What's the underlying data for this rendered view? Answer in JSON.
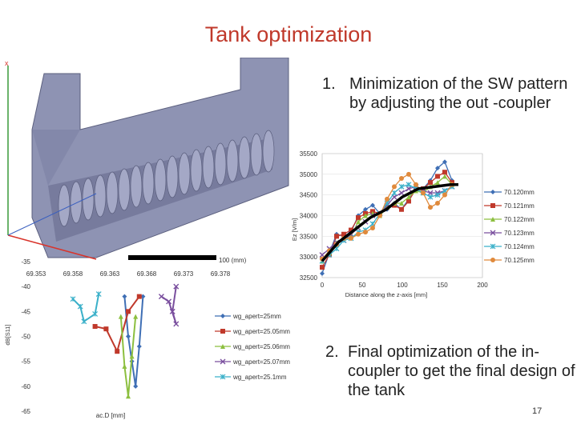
{
  "slide": {
    "title": "Tank optimization",
    "item1_number": "1.",
    "item1_text": "Minimization of the SW pattern by adjusting the out -coupler",
    "item2_number": "2.",
    "item2_text": "Final optimization of the in-coupler to get the final design of the tank",
    "page_number": "17"
  },
  "cad_view": {
    "x_axis_label": "x",
    "scale_label": "100 (mm)",
    "colors": {
      "body": "#8e93b3",
      "body_dark": "#6d7194",
      "axis_x": "#d9342b",
      "axis_y": "#3a9a3a"
    }
  },
  "chart_data": [
    {
      "type": "line",
      "xlabel": "Distance along the z-axis [mm]",
      "ylabel": "Ez [V/m]",
      "xlim": [
        0,
        200
      ],
      "ylim": [
        32500,
        35500
      ],
      "xticks": [
        0,
        50,
        100,
        150,
        200
      ],
      "yticks": [
        32500,
        33000,
        33500,
        34000,
        34500,
        35000,
        35500
      ],
      "legend_position": "right",
      "series": [
        {
          "name": "70.120mm",
          "color": "#3f6fb5",
          "marker": "diamond",
          "x": [
            0,
            9,
            18,
            27,
            36,
            45,
            54,
            63,
            72,
            81,
            90,
            99,
            108,
            117,
            126,
            135,
            144,
            153,
            162
          ],
          "y": [
            32600,
            33100,
            33550,
            33500,
            33600,
            34000,
            34150,
            34250,
            34050,
            34150,
            34300,
            34150,
            34400,
            34700,
            34650,
            34850,
            35150,
            35300,
            34850
          ]
        },
        {
          "name": "70.121mm",
          "color": "#c0392b",
          "marker": "square",
          "x": [
            0,
            9,
            18,
            27,
            36,
            45,
            54,
            63,
            72,
            81,
            90,
            99,
            108,
            117,
            126,
            135,
            144,
            153,
            162
          ],
          "y": [
            32750,
            33050,
            33500,
            33550,
            33650,
            33950,
            34050,
            34100,
            34050,
            34200,
            34250,
            34150,
            34350,
            34650,
            34650,
            34800,
            34950,
            35050,
            34800
          ]
        },
        {
          "name": "70.122mm",
          "color": "#8cbf3f",
          "marker": "triangle",
          "x": [
            0,
            9,
            18,
            27,
            36,
            45,
            54,
            63,
            72,
            81,
            90,
            99,
            108,
            117,
            126,
            135,
            144,
            153,
            162
          ],
          "y": [
            32900,
            33100,
            33350,
            33450,
            33500,
            33850,
            34000,
            34050,
            34000,
            34200,
            34300,
            34300,
            34450,
            34600,
            34550,
            34700,
            34800,
            34950,
            34750
          ]
        },
        {
          "name": "70.123mm",
          "color": "#7a4f9e",
          "marker": "x",
          "x": [
            0,
            9,
            18,
            27,
            36,
            45,
            54,
            63,
            72,
            81,
            90,
            99,
            108,
            117,
            126,
            135,
            144,
            153,
            162
          ],
          "y": [
            33050,
            33200,
            33350,
            33400,
            33550,
            33700,
            33850,
            34000,
            34050,
            34250,
            34450,
            34550,
            34650,
            34700,
            34600,
            34550,
            34550,
            34600,
            34700
          ]
        },
        {
          "name": "70.124mm",
          "color": "#3ab0c9",
          "marker": "star",
          "x": [
            0,
            9,
            18,
            27,
            36,
            45,
            54,
            63,
            72,
            81,
            90,
            99,
            108,
            117,
            126,
            135,
            144,
            153,
            162
          ],
          "y": [
            32900,
            33050,
            33200,
            33400,
            33450,
            33600,
            33650,
            33800,
            34050,
            34300,
            34550,
            34700,
            34750,
            34650,
            34550,
            34450,
            34500,
            34600,
            34700
          ]
        },
        {
          "name": "70.125mm",
          "color": "#e08a3c",
          "marker": "circle",
          "x": [
            0,
            9,
            18,
            27,
            36,
            45,
            54,
            63,
            72,
            81,
            90,
            99,
            108,
            117,
            126,
            135,
            144,
            153,
            162
          ],
          "y": [
            32950,
            33150,
            33300,
            33450,
            33450,
            33550,
            33600,
            33700,
            34000,
            34400,
            34700,
            34900,
            35000,
            34750,
            34550,
            34200,
            34300,
            34500,
            34750
          ]
        },
        {
          "name": "",
          "color": "#000000",
          "marker": "none",
          "x": [
            0,
            20,
            40,
            60,
            80,
            100,
            120,
            140,
            160,
            170
          ],
          "y": [
            32900,
            33350,
            33650,
            33950,
            34150,
            34450,
            34650,
            34700,
            34750,
            34750
          ]
        }
      ]
    },
    {
      "type": "line",
      "xlabel": "ac.D [mm]",
      "ylabel": "dB[S11]",
      "xticks": [
        "69.353",
        "69.358",
        "69.363",
        "69.368",
        "69.373",
        "69.378"
      ],
      "xlim": [
        69.353,
        69.378
      ],
      "ylim": [
        -65,
        -35
      ],
      "yticks": [
        -35,
        -40,
        -45,
        -50,
        -55,
        -60,
        -65
      ],
      "legend_position": "right",
      "series": [
        {
          "name": "wg_apert=25mm",
          "color": "#3f6fb5",
          "marker": "diamond",
          "x": [
            69.365,
            69.3655,
            69.366,
            69.3665,
            69.367,
            69.3675
          ],
          "y": [
            -42.0,
            -50.0,
            -55.0,
            -60.0,
            -52.0,
            -42.0
          ]
        },
        {
          "name": "wg_apert=25.05mm",
          "color": "#c0392b",
          "marker": "square",
          "x": [
            69.361,
            69.3625,
            69.364,
            69.3655,
            69.367
          ],
          "y": [
            -48.0,
            -48.5,
            -53.0,
            -45.0,
            -42.0
          ]
        },
        {
          "name": "wg_apert=25.06mm",
          "color": "#8cbf3f",
          "marker": "triangle",
          "x": [
            69.3645,
            69.365,
            69.3655,
            69.366,
            69.3665
          ],
          "y": [
            -46.0,
            -56.0,
            -62.0,
            -54.0,
            -46.0
          ]
        },
        {
          "name": "wg_apert=25.07mm",
          "color": "#7a4f9e",
          "marker": "x",
          "x": [
            69.37,
            69.371,
            69.372,
            69.3715,
            69.372
          ],
          "y": [
            -42.0,
            -43.0,
            -47.5,
            -45.0,
            -40.0
          ]
        },
        {
          "name": "wg_apert=25.1mm",
          "color": "#3ab0c9",
          "marker": "star",
          "x": [
            69.358,
            69.359,
            69.3595,
            69.361,
            69.3615
          ],
          "y": [
            -42.5,
            -44.0,
            -47.0,
            -45.5,
            -41.5
          ]
        }
      ]
    }
  ]
}
